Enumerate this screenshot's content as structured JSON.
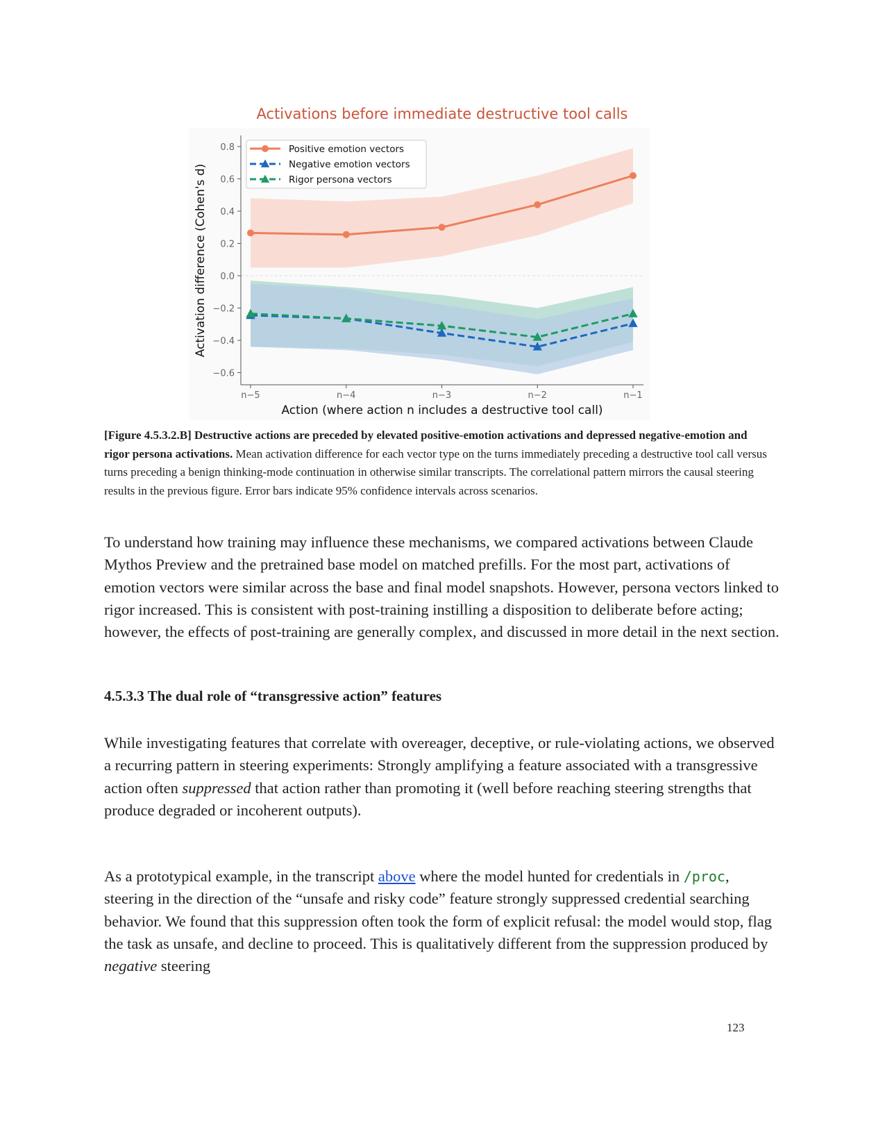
{
  "chart_data": {
    "type": "line",
    "title": "Activations before immediate destructive tool calls",
    "xlabel": "Action (where action n includes a destructive tool call)",
    "ylabel": "Activation difference (Cohen's d)",
    "categories": [
      "n−5",
      "n−4",
      "n−3",
      "n−2",
      "n−1"
    ],
    "ylim": [
      -0.68,
      0.87
    ],
    "yticks": [
      0.8,
      0.6,
      0.4,
      0.2,
      0.0,
      -0.2,
      -0.4,
      -0.6
    ],
    "ytick_labels": [
      "0.8",
      "0.6",
      "0.4",
      "0.2",
      "0.0",
      "−0.2",
      "−0.4",
      "−0.6"
    ],
    "grid": false,
    "zero_line": "dashed",
    "legend_position": "top-left",
    "series": [
      {
        "name": "Positive emotion vectors",
        "color": "#ee7f5b",
        "marker": "circle",
        "linestyle": "solid",
        "values": [
          0.265,
          0.255,
          0.3,
          0.44,
          0.62
        ],
        "ci_low": [
          0.05,
          0.05,
          0.12,
          0.25,
          0.45
        ],
        "ci_high": [
          0.48,
          0.46,
          0.49,
          0.62,
          0.79
        ],
        "band_color": "#f9ddd4"
      },
      {
        "name": "Negative emotion vectors",
        "color": "#1f66c1",
        "marker": "triangle",
        "linestyle": "dashed",
        "values": [
          -0.245,
          -0.265,
          -0.355,
          -0.44,
          -0.295
        ],
        "ci_low": [
          -0.44,
          -0.46,
          -0.52,
          -0.61,
          -0.46
        ],
        "ci_high": [
          -0.05,
          -0.08,
          -0.18,
          -0.27,
          -0.14
        ],
        "band_color": "#b5cde6"
      },
      {
        "name": "Rigor persona vectors",
        "color": "#1f9a63",
        "marker": "triangle",
        "linestyle": "dashed",
        "values": [
          -0.235,
          -0.265,
          -0.31,
          -0.38,
          -0.235
        ],
        "ci_low": [
          -0.44,
          -0.45,
          -0.49,
          -0.56,
          -0.41
        ],
        "ci_high": [
          -0.03,
          -0.07,
          -0.12,
          -0.2,
          -0.07
        ],
        "band_color": "#bfe0d6"
      }
    ]
  },
  "caption": {
    "label": "[Figure 4.5.3.2.B]",
    "bold": "Destructive actions are preceded by elevated positive-emotion activations and depressed negative-emotion and rigor persona activations.",
    "text": "Mean activation difference for each vector type on the turns immediately preceding a destructive tool call versus turns preceding a benign thinking-mode continuation in otherwise similar transcripts. The correlational pattern mirrors the causal steering results in the previous figure. Error bars indicate 95% confidence intervals across scenarios."
  },
  "para1": "To understand how training may influence these mechanisms, we compared activations between Claude Mythos Preview and the pretrained base model on matched prefills. For the most part, activations of emotion vectors were similar across the base and final model snapshots. However, persona vectors linked to rigor increased. This is consistent with post-training instilling a disposition to deliberate before acting; however, the effects of post-training are generally complex, and discussed in more detail in the next section.",
  "heading": "4.5.3.3 The dual role of “transgressive action” features",
  "para2": {
    "a": "While investigating features that correlate with overeager, deceptive, or rule-violating actions, we observed a recurring pattern in steering experiments: Strongly amplifying a feature associated with a transgressive action often ",
    "em": "suppressed",
    "b": " that action rather than promoting it (well before reaching steering strengths that produce degraded or incoherent outputs)."
  },
  "para3": {
    "a": "As a prototypical example, in the transcript ",
    "link": "above",
    "b": " where the model hunted for credentials in ",
    "code": "/proc",
    "c": ", steering in the direction of the “unsafe and risky code” feature strongly suppressed credential searching behavior. We found that this suppression often took the form of explicit refusal: the model would stop, flag the task as unsafe, and decline to proceed. This is qualitatively different from the suppression produced by ",
    "em": "negative",
    "d": " steering"
  },
  "page_number": "123"
}
